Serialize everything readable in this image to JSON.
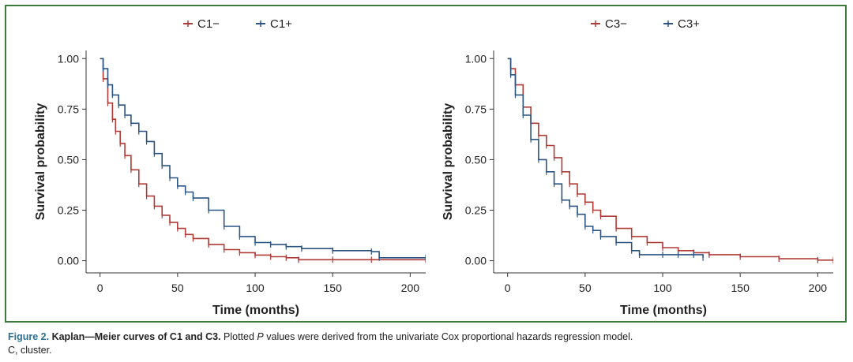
{
  "figure": {
    "caption_label": "Figure 2.",
    "caption_title": "Kaplan—Meier curves of C1 and C3.",
    "caption_text_1": "Plotted",
    "caption_p": "P",
    "caption_text_2": "values were derived from the univariate Cox proportional hazards regression model.",
    "caption_line2": "C, cluster.",
    "frame_color": "#3d7a3d",
    "caption_label_color": "#2e6f8e"
  },
  "chart_data": [
    {
      "type": "line",
      "subtype": "kaplan-meier",
      "title": "",
      "xlabel": "Time (months)",
      "ylabel": "Survival probability",
      "xlim": [
        -9,
        210
      ],
      "ylim": [
        -0.06,
        1.04
      ],
      "xticks": [
        0,
        50,
        100,
        150,
        200
      ],
      "xtick_labels": [
        "0",
        "50",
        "100",
        "150",
        "200"
      ],
      "yticks": [
        0,
        0.25,
        0.5,
        0.75,
        1.0
      ],
      "ytick_labels": [
        "0.00",
        "0.25",
        "0.50",
        "0.75",
        "1.00"
      ],
      "grid": false,
      "legend_position": "top-center",
      "series": [
        {
          "name": "C1−",
          "color": "#b03a35",
          "x": [
            0,
            2,
            5,
            8,
            10,
            13,
            16,
            20,
            25,
            30,
            35,
            40,
            45,
            50,
            55,
            60,
            70,
            80,
            90,
            100,
            110,
            120,
            128,
            150,
            175,
            210
          ],
          "y": [
            1.0,
            0.9,
            0.78,
            0.7,
            0.64,
            0.58,
            0.52,
            0.45,
            0.38,
            0.32,
            0.27,
            0.225,
            0.19,
            0.16,
            0.13,
            0.11,
            0.08,
            0.055,
            0.04,
            0.028,
            0.02,
            0.015,
            0.005,
            0.005,
            0.005,
            0.005
          ]
        },
        {
          "name": "C1+",
          "color": "#2c5482",
          "x": [
            0,
            2,
            5,
            8,
            12,
            16,
            20,
            25,
            30,
            35,
            40,
            45,
            50,
            55,
            60,
            70,
            80,
            90,
            100,
            110,
            120,
            130,
            150,
            175,
            180,
            210
          ],
          "y": [
            1.0,
            0.95,
            0.87,
            0.82,
            0.77,
            0.72,
            0.68,
            0.64,
            0.59,
            0.53,
            0.47,
            0.41,
            0.37,
            0.34,
            0.31,
            0.25,
            0.17,
            0.12,
            0.09,
            0.08,
            0.07,
            0.06,
            0.05,
            0.045,
            0.015,
            0.015
          ]
        }
      ]
    },
    {
      "type": "line",
      "subtype": "kaplan-meier",
      "title": "",
      "xlabel": "Time (months)",
      "ylabel": "Survival probability",
      "xlim": [
        -9,
        210
      ],
      "ylim": [
        -0.06,
        1.04
      ],
      "xticks": [
        0,
        50,
        100,
        150,
        200
      ],
      "xtick_labels": [
        "0",
        "50",
        "100",
        "150",
        "200"
      ],
      "yticks": [
        0,
        0.25,
        0.5,
        0.75,
        1.0
      ],
      "ytick_labels": [
        "0.00",
        "0.25",
        "0.50",
        "0.75",
        "1.00"
      ],
      "grid": false,
      "legend_position": "top-center",
      "series": [
        {
          "name": "C3−",
          "color": "#b03a35",
          "x": [
            0,
            2,
            5,
            10,
            15,
            20,
            25,
            30,
            35,
            40,
            45,
            50,
            55,
            60,
            70,
            80,
            90,
            100,
            110,
            120,
            130,
            150,
            175,
            200,
            210
          ],
          "y": [
            1.0,
            0.95,
            0.87,
            0.76,
            0.68,
            0.62,
            0.57,
            0.51,
            0.44,
            0.38,
            0.33,
            0.29,
            0.25,
            0.22,
            0.16,
            0.12,
            0.09,
            0.065,
            0.05,
            0.04,
            0.03,
            0.02,
            0.01,
            0.003,
            0.003
          ]
        },
        {
          "name": "C3+",
          "color": "#2c5482",
          "x": [
            0,
            2,
            5,
            10,
            15,
            20,
            25,
            30,
            35,
            40,
            45,
            50,
            55,
            60,
            70,
            80,
            85,
            100,
            110,
            120,
            126
          ],
          "y": [
            1.0,
            0.92,
            0.82,
            0.72,
            0.6,
            0.5,
            0.44,
            0.38,
            0.3,
            0.27,
            0.23,
            0.17,
            0.15,
            0.12,
            0.09,
            0.05,
            0.03,
            0.03,
            0.03,
            0.03,
            0.015
          ]
        }
      ]
    }
  ]
}
